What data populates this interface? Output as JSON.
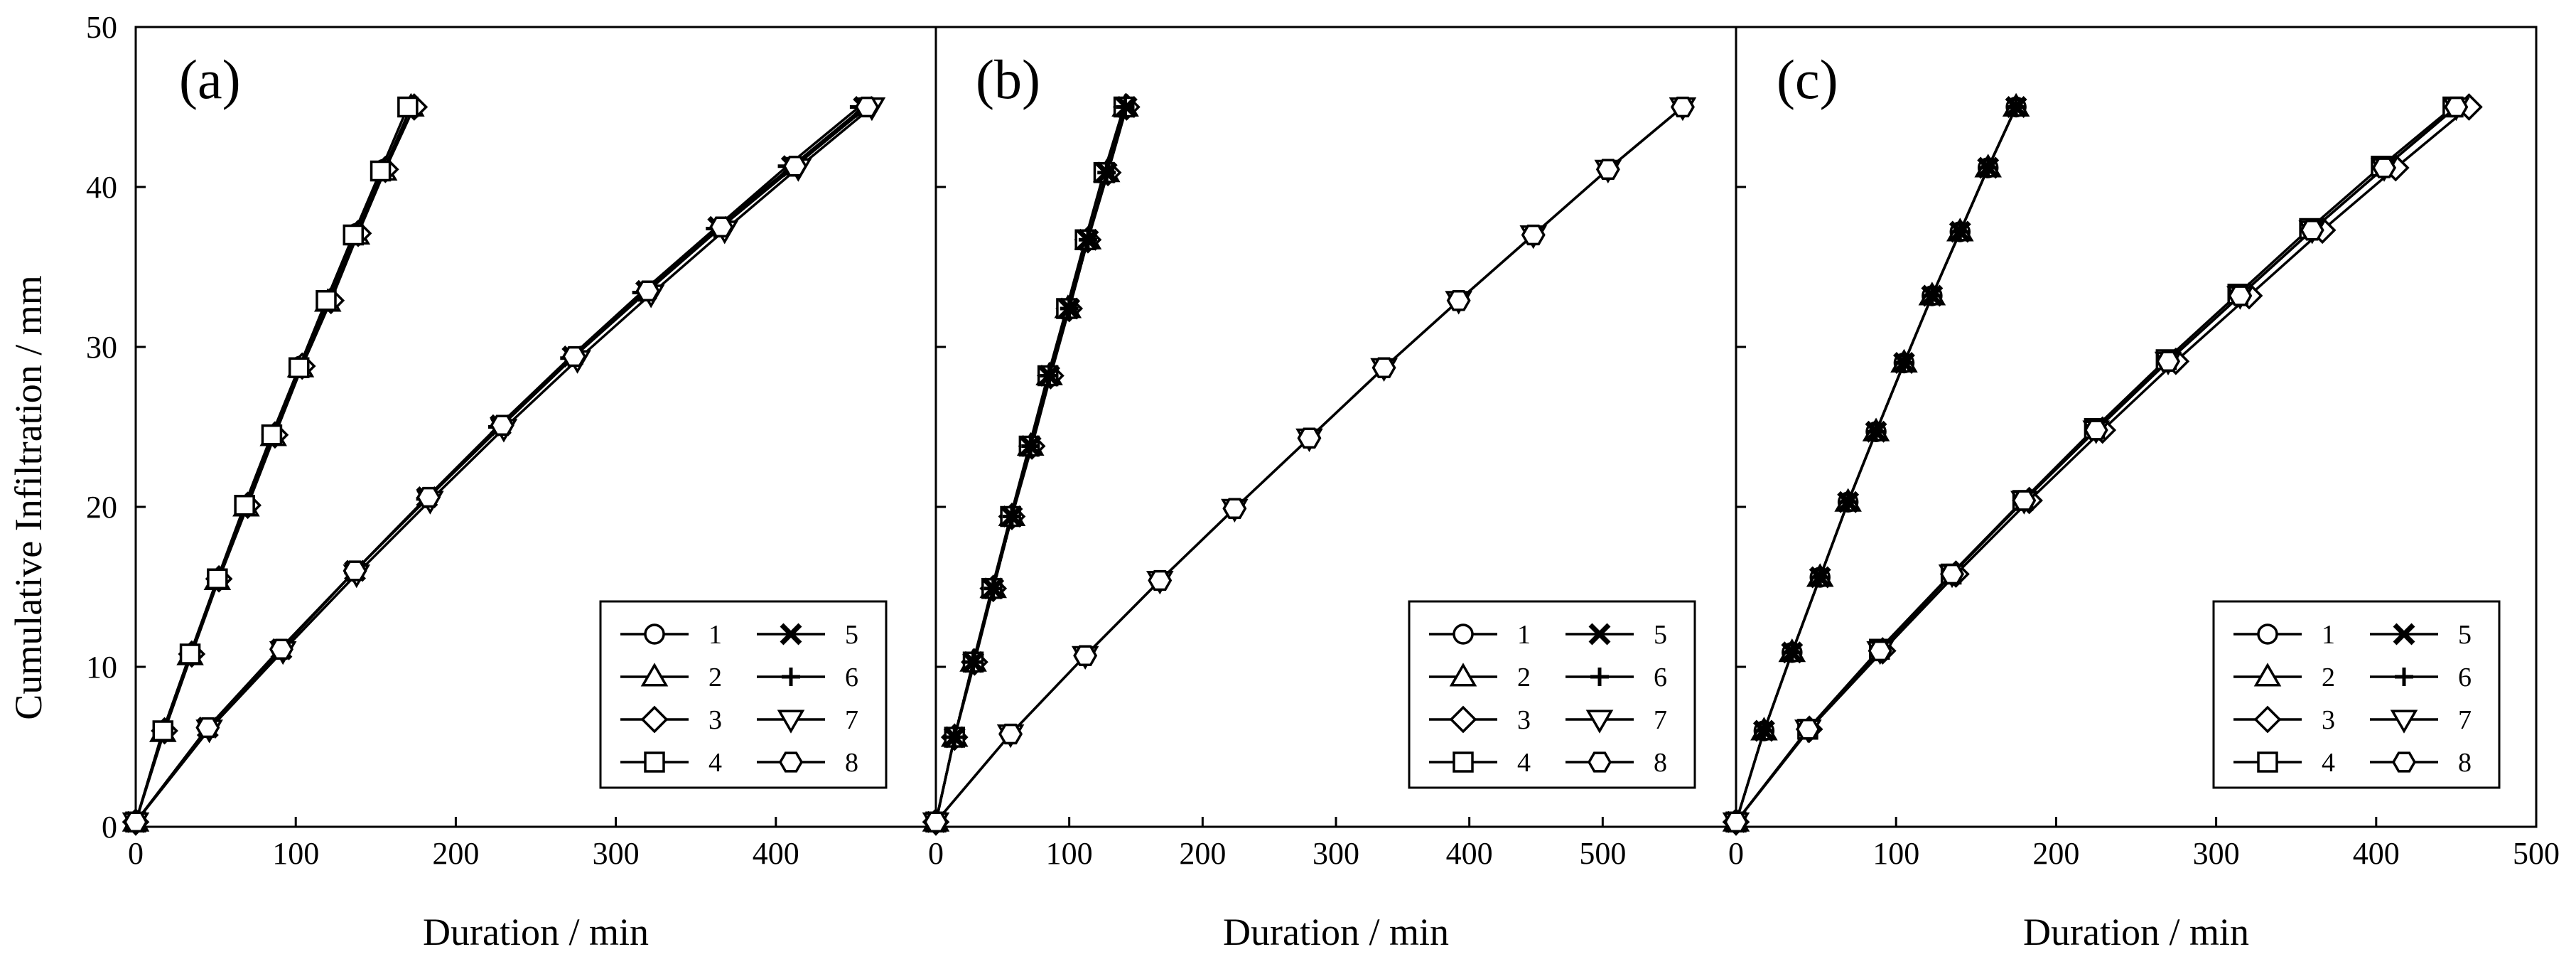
{
  "figure": {
    "ylabel": "Cumulative Infiltration / mm",
    "line_color": "#000000"
  },
  "chart_data": [
    {
      "type": "line",
      "panel_label": "(a)",
      "xlabel": "Duration / min",
      "ylabel": "Cumulative Infiltration / mm",
      "xlim": [
        0,
        500
      ],
      "ylim": [
        0,
        50
      ],
      "x_ticks": [
        "0",
        "100",
        "200",
        "300",
        "400"
      ],
      "y_ticks": [
        "0",
        "10",
        "20",
        "30",
        "40",
        "50"
      ],
      "legend": {
        "placement": "bottom-right",
        "entries": [
          "1",
          "2",
          "3",
          "4",
          "5",
          "6",
          "7",
          "8"
        ]
      },
      "series": [
        {
          "name": "1",
          "marker": "circle",
          "x": [
            0,
            17,
            34,
            51,
            69,
            86,
            103,
            120,
            138,
            155,
            172
          ],
          "y": [
            0.3,
            6,
            10.8,
            15.5,
            20.1,
            24.5,
            28.8,
            32.9,
            37.1,
            41.1,
            45
          ]
        },
        {
          "name": "2",
          "marker": "triangle-up",
          "x": [
            0,
            17,
            34,
            51,
            69,
            86,
            103,
            120,
            138,
            155,
            172
          ],
          "y": [
            0.3,
            5.9,
            10.7,
            15.4,
            20,
            24.4,
            28.7,
            32.8,
            37,
            41,
            45
          ]
        },
        {
          "name": "3",
          "marker": "diamond",
          "x": [
            0,
            18,
            35,
            52,
            70,
            87,
            104,
            122,
            139,
            156,
            174
          ],
          "y": [
            0.3,
            6,
            10.8,
            15.5,
            20.1,
            24.5,
            28.8,
            32.9,
            37.1,
            41.1,
            45
          ]
        },
        {
          "name": "4",
          "marker": "square",
          "x": [
            0,
            17,
            34,
            51,
            68,
            85,
            102,
            119,
            136,
            153,
            170
          ],
          "y": [
            0.3,
            6,
            10.8,
            15.5,
            20.1,
            24.5,
            28.7,
            32.9,
            37,
            41,
            45
          ]
        },
        {
          "name": "5",
          "marker": "x",
          "x": [
            0,
            45,
            91,
            137,
            182,
            228,
            273,
            319,
            364,
            410,
            455
          ],
          "y": [
            0.3,
            6.2,
            11.1,
            16,
            20.6,
            25.1,
            29.4,
            33.5,
            37.5,
            41.3,
            45
          ]
        },
        {
          "name": "6",
          "marker": "plus",
          "x": [
            0,
            45,
            90,
            136,
            181,
            226,
            271,
            316,
            362,
            407,
            452
          ],
          "y": [
            0.3,
            6.2,
            11.1,
            15.9,
            20.5,
            25,
            29.3,
            33.4,
            37.4,
            41.3,
            45
          ]
        },
        {
          "name": "7",
          "marker": "triangle-down",
          "x": [
            0,
            46,
            92,
            138,
            184,
            230,
            276,
            322,
            368,
            414,
            460
          ],
          "y": [
            0.3,
            6.1,
            11,
            15.8,
            20.4,
            24.9,
            29.2,
            33.3,
            37.3,
            41.2,
            45
          ]
        },
        {
          "name": "8",
          "marker": "hexagon",
          "x": [
            0,
            45,
            91,
            137,
            183,
            229,
            274,
            320,
            366,
            412,
            457
          ],
          "y": [
            0.3,
            6.2,
            11.1,
            16,
            20.6,
            25.1,
            29.4,
            33.5,
            37.5,
            41.3,
            45
          ]
        }
      ]
    },
    {
      "type": "line",
      "panel_label": "(b)",
      "xlabel": "Duration / min",
      "ylabel": "Cumulative Infiltration / mm",
      "xlim": [
        0,
        600
      ],
      "ylim": [
        0,
        50
      ],
      "x_ticks": [
        "0",
        "100",
        "200",
        "300",
        "400",
        "500"
      ],
      "y_ticks": [
        "0",
        "10",
        "20",
        "30",
        "40",
        "50"
      ],
      "legend": {
        "placement": "bottom-right",
        "entries": [
          "1",
          "2",
          "3",
          "4",
          "5",
          "6",
          "7",
          "8"
        ]
      },
      "series": [
        {
          "name": "1",
          "marker": "circle",
          "x": [
            0,
            14,
            28,
            43,
            57,
            71,
            85,
            99,
            114,
            128,
            142
          ],
          "y": [
            0.3,
            5.6,
            10.3,
            14.9,
            19.4,
            23.8,
            28.2,
            32.4,
            36.7,
            40.9,
            45
          ]
        },
        {
          "name": "2",
          "marker": "triangle-up",
          "x": [
            0,
            14,
            28,
            43,
            57,
            71,
            85,
            99,
            114,
            128,
            142
          ],
          "y": [
            0.3,
            5.6,
            10.3,
            14.9,
            19.4,
            23.8,
            28.2,
            32.4,
            36.7,
            40.9,
            45
          ]
        },
        {
          "name": "3",
          "marker": "diamond",
          "x": [
            0,
            14,
            29,
            43,
            57,
            72,
            86,
            100,
            114,
            129,
            143
          ],
          "y": [
            0.3,
            5.6,
            10.3,
            14.9,
            19.4,
            23.8,
            28.2,
            32.4,
            36.7,
            40.9,
            45
          ]
        },
        {
          "name": "4",
          "marker": "square",
          "x": [
            0,
            14,
            28,
            42,
            56,
            70,
            84,
            98,
            112,
            126,
            141
          ],
          "y": [
            0.3,
            5.6,
            10.3,
            14.9,
            19.4,
            23.8,
            28.2,
            32.4,
            36.7,
            40.9,
            45
          ]
        },
        {
          "name": "5",
          "marker": "x",
          "x": [
            0,
            14,
            28,
            43,
            57,
            71,
            85,
            100,
            114,
            128,
            143
          ],
          "y": [
            0.3,
            5.6,
            10.3,
            14.9,
            19.4,
            23.8,
            28.2,
            32.4,
            36.7,
            40.9,
            45
          ]
        },
        {
          "name": "6",
          "marker": "plus",
          "x": [
            0,
            14,
            28,
            43,
            57,
            71,
            85,
            100,
            114,
            128,
            142
          ],
          "y": [
            0.3,
            5.6,
            10.3,
            14.9,
            19.4,
            23.8,
            28.2,
            32.4,
            36.7,
            40.9,
            45
          ]
        },
        {
          "name": "7",
          "marker": "triangle-down",
          "x": [
            0,
            56,
            112,
            168,
            224,
            280,
            336,
            392,
            448,
            504,
            560
          ],
          "y": [
            0.3,
            5.8,
            10.7,
            15.4,
            19.9,
            24.3,
            28.7,
            32.9,
            37,
            41.1,
            45
          ]
        },
        {
          "name": "8",
          "marker": "hexagon",
          "x": [
            0,
            56,
            112,
            168,
            224,
            280,
            336,
            392,
            448,
            504,
            560
          ],
          "y": [
            0.3,
            5.8,
            10.7,
            15.4,
            19.9,
            24.3,
            28.7,
            32.9,
            37,
            41.1,
            45
          ]
        }
      ]
    },
    {
      "type": "line",
      "panel_label": "(c)",
      "xlabel": "Duration / min",
      "ylabel": "Cumulative Infiltration / mm",
      "xlim": [
        0,
        500
      ],
      "ylim": [
        0,
        50
      ],
      "x_ticks": [
        "0",
        "100",
        "200",
        "300",
        "400",
        "500"
      ],
      "y_ticks": [
        "0",
        "10",
        "20",
        "30",
        "40",
        "50"
      ],
      "legend": {
        "placement": "bottom-right",
        "entries": [
          "1",
          "2",
          "3",
          "4",
          "5",
          "6",
          "7",
          "8"
        ]
      },
      "series": [
        {
          "name": "1",
          "marker": "circle",
          "x": [
            0,
            17.5,
            35,
            52.5,
            70,
            87.5,
            105,
            122.5,
            140,
            157.5,
            175
          ],
          "y": [
            0.3,
            6,
            10.9,
            15.6,
            20.3,
            24.7,
            29,
            33.2,
            37.2,
            41.2,
            45
          ]
        },
        {
          "name": "2",
          "marker": "triangle-up",
          "x": [
            0,
            17.5,
            35,
            52.5,
            70,
            87.5,
            105,
            122.5,
            140,
            157.5,
            175
          ],
          "y": [
            0.3,
            6,
            10.9,
            15.6,
            20.3,
            24.7,
            29,
            33.2,
            37.2,
            41.2,
            45
          ]
        },
        {
          "name": "3",
          "marker": "diamond",
          "x": [
            0,
            45.8,
            91.6,
            137.4,
            183.2,
            229,
            274.8,
            320.6,
            366.4,
            412.2,
            458
          ],
          "y": [
            0.3,
            6.1,
            11,
            15.8,
            20.4,
            24.8,
            29.1,
            33.2,
            37.3,
            41.2,
            45
          ]
        },
        {
          "name": "4",
          "marker": "square",
          "x": [
            0,
            44.8,
            89.6,
            134.4,
            179.2,
            224,
            268.8,
            313.6,
            358.4,
            403.2,
            448
          ],
          "y": [
            0.3,
            6.1,
            11.1,
            15.8,
            20.4,
            24.9,
            29.2,
            33.3,
            37.4,
            41.3,
            45
          ]
        },
        {
          "name": "5",
          "marker": "x",
          "x": [
            0,
            17.5,
            35,
            52.5,
            70,
            87.5,
            105,
            122.5,
            140,
            157.5,
            175
          ],
          "y": [
            0.3,
            6,
            10.9,
            15.6,
            20.3,
            24.7,
            29,
            33.2,
            37.2,
            41.2,
            45
          ]
        },
        {
          "name": "6",
          "marker": "plus",
          "x": [
            0,
            17.5,
            35,
            52.5,
            70,
            87.5,
            105,
            122.5,
            140,
            157.5,
            175
          ],
          "y": [
            0.3,
            6,
            10.9,
            15.6,
            20.3,
            24.7,
            29,
            33.2,
            37.2,
            41.2,
            45
          ]
        },
        {
          "name": "7",
          "marker": "triangle-down",
          "x": [
            0,
            45,
            90,
            135,
            180,
            225,
            270,
            315,
            360,
            405,
            450
          ],
          "y": [
            0.3,
            6.1,
            11,
            15.8,
            20.4,
            24.8,
            29.1,
            33.2,
            37.3,
            41.2,
            45
          ]
        },
        {
          "name": "8",
          "marker": "hexagon",
          "x": [
            0,
            45,
            90,
            135,
            180,
            225,
            270,
            315,
            360,
            405,
            450
          ],
          "y": [
            0.3,
            6.1,
            11,
            15.8,
            20.4,
            24.8,
            29.1,
            33.2,
            37.3,
            41.2,
            45
          ]
        }
      ]
    }
  ]
}
